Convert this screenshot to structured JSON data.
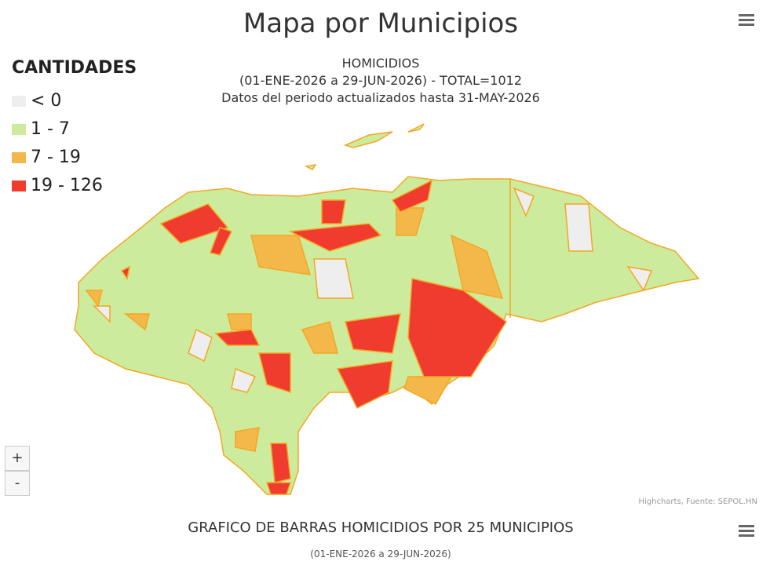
{
  "header": {
    "title": "Mapa por Municipios"
  },
  "legend": {
    "title": "CANTIDADES",
    "items": [
      {
        "label": "< 0",
        "color": "#eeeeee"
      },
      {
        "label": "1 - 7",
        "color": "#cdeb9d"
      },
      {
        "label": "7 - 19",
        "color": "#f4b84a"
      },
      {
        "label": "19 - 126",
        "color": "#f03b2f"
      }
    ]
  },
  "map": {
    "subtitle_lines": [
      "HOMICIDIOS",
      "(01-ENE-2026 a 29-JUN-2026) - TOTAL=1012",
      "Datos del periodo actualizados hasta 31-MAY-2026"
    ],
    "credits": "Highcharts, Fuente: SEPOL.HN"
  },
  "zoom": {
    "in": "+",
    "out": "-"
  },
  "bar_chart": {
    "title": "GRAFICO DE BARRAS HOMICIDIOS POR 25 MUNICIPIOS",
    "subtitle": "(01-ENE-2026 a 29-JUN-2026)"
  }
}
